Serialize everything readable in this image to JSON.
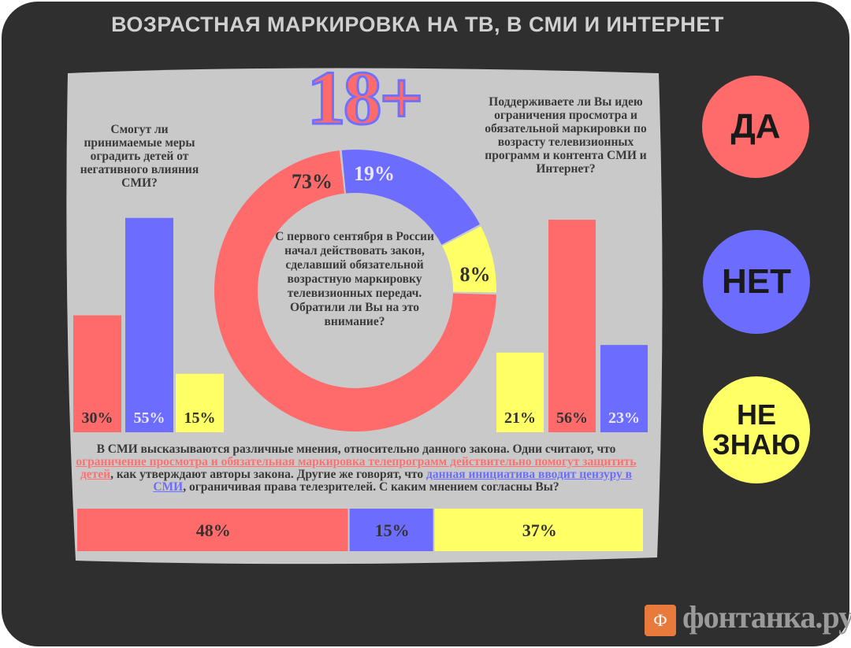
{
  "title": "ВОЗРАСТНАЯ МАРКИРОВКА НА ТВ, В СМИ И ИНТЕРНЕТ",
  "badge": "18+",
  "legend": {
    "yes": "ДА",
    "no": "НЕТ",
    "dont_know": "НЕ ЗНАЮ"
  },
  "colors": {
    "yes": "#ff6b6b",
    "no": "#6c6cff",
    "dont_know": "#ffff66",
    "background": "#2f2f2f",
    "screen": "#c8c8c8"
  },
  "questions": {
    "left": "Смогут ли принимаемые меры оградить детей от негативного влияния СМИ?",
    "center": "С первого сентября в России начал действовать закон, сделавший обязательной возрастную маркировку телевизионных передач. Обратили ли Вы на это внимание?",
    "right": "Поддерживаете ли Вы идею ограничения просмотра и обязательной маркировки по возрасту телевизионных программ и контента СМИ и Интернет?",
    "bottom": {
      "p1": "В СМИ высказываются различные мнения, относительно данного закона. Одни считают, что ",
      "h1": "ограничение просмотра и обязательная маркировка телепрограмм действительно помогут защитить детей",
      "p2": ", как утверждают авторы закона. Другие же говорят, что ",
      "h2": "данная инициатива вводит цензуру в СМИ",
      "p3": ", ограничивая права телезрителей. С каким мнением согласны Вы?"
    }
  },
  "chart_data": [
    {
      "type": "bar",
      "id": "left",
      "categories": [
        "ДА",
        "НЕТ",
        "НЕ ЗНАЮ"
      ],
      "values": [
        30,
        55,
        15
      ],
      "labels": [
        "30%",
        "55%",
        "15%"
      ]
    },
    {
      "type": "pie",
      "id": "center",
      "categories": [
        "ДА",
        "НЕТ",
        "НЕ ЗНАЮ"
      ],
      "values": [
        73,
        19,
        8
      ],
      "labels": [
        "73%",
        "19%",
        "8%"
      ]
    },
    {
      "type": "bar",
      "id": "right",
      "categories": [
        "НЕ ЗНАЮ",
        "ДА",
        "НЕТ"
      ],
      "values": [
        21,
        56,
        23
      ],
      "labels": [
        "21%",
        "56%",
        "23%"
      ]
    },
    {
      "type": "bar",
      "id": "bottom",
      "orientation": "stacked-horizontal",
      "categories": [
        "ДА",
        "НЕТ",
        "НЕ ЗНАЮ"
      ],
      "values": [
        48,
        15,
        37
      ],
      "labels": [
        "48%",
        "15%",
        "37%"
      ]
    }
  ],
  "source": "фонтанка.ру"
}
